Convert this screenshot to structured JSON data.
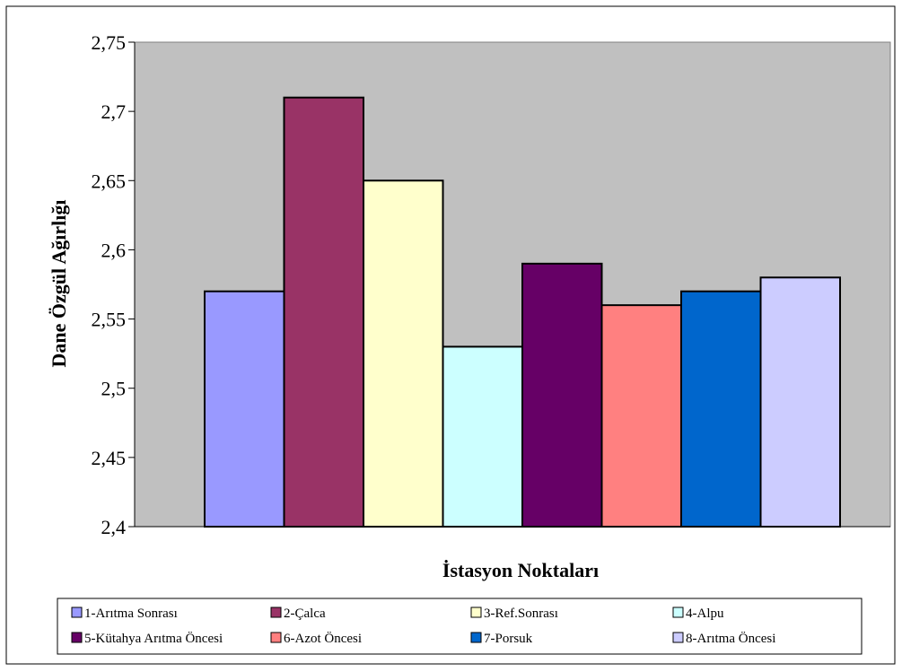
{
  "chart_data": {
    "type": "bar",
    "title": "",
    "xlabel": "İstasyon Noktaları",
    "ylabel": "Dane Özgül Ağırlığı",
    "ylim": [
      2.4,
      2.75
    ],
    "yticks": [
      "2,4",
      "2,45",
      "2,5",
      "2,55",
      "2,6",
      "2,65",
      "2,7",
      "2,75"
    ],
    "grid": false,
    "legend_position": "bottom",
    "plot_background": "#c0c0c0",
    "series": [
      {
        "name": "1-Arıtma Sonrası",
        "value": 2.57,
        "color": "#9999ff"
      },
      {
        "name": "2-Çalca",
        "value": 2.71,
        "color": "#993366"
      },
      {
        "name": "3-Ref.Sonrası",
        "value": 2.65,
        "color": "#ffffcc"
      },
      {
        "name": "4-Alpu",
        "value": 2.53,
        "color": "#ccffff"
      },
      {
        "name": "5-Kütahya Arıtma Öncesi",
        "value": 2.59,
        "color": "#660066"
      },
      {
        "name": "6-Azot Öncesi",
        "value": 2.56,
        "color": "#ff8080"
      },
      {
        "name": "7-Porsuk",
        "value": 2.57,
        "color": "#0066cc"
      },
      {
        "name": "8-Arıtma Öncesi",
        "value": 2.58,
        "color": "#ccccff"
      }
    ]
  }
}
